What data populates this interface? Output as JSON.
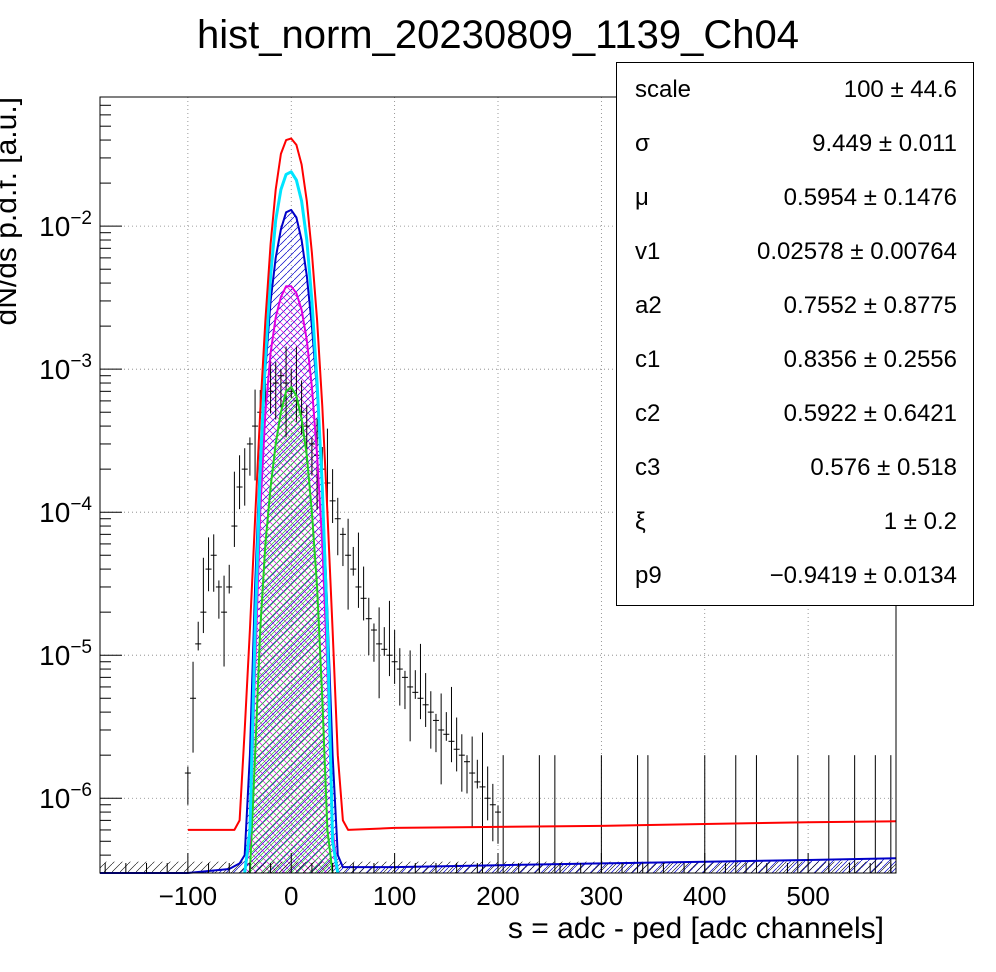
{
  "colors": {
    "data": "#000000",
    "total_fit": "#ff0000",
    "cyan_component": "#00e5ff",
    "blue_component": "#0000c8",
    "magenta_component": "#e000e0",
    "green_component": "#22d022",
    "grid": "#808080"
  },
  "stats": [
    {
      "name": "scale",
      "value": "100 ± 44.6"
    },
    {
      "name": "σ",
      "value": "9.449 ± 0.011"
    },
    {
      "name": "μ",
      "value": "0.5954 ± 0.1476"
    },
    {
      "name": "v1",
      "value": "0.02578 ± 0.00764"
    },
    {
      "name": "a2",
      "value": "0.7552 ± 0.8775"
    },
    {
      "name": "c1",
      "value": "0.8356 ± 0.2556"
    },
    {
      "name": "c2",
      "value": "0.5922 ± 0.6421"
    },
    {
      "name": "c3",
      "value": "0.576 ± 0.518"
    },
    {
      "name": "ξ",
      "value": "1 ± 0.2"
    },
    {
      "name": "p9",
      "value": "−0.9419 ± 0.0134"
    }
  ],
  "chart_data": {
    "type": "line",
    "title": "hist_norm_20230809_1139_Ch04",
    "xlabel": "s = adc - ped [adc channels]",
    "ylabel": "dN/ds p.d.f. [a.u.]",
    "xlim": [
      -185,
      585
    ],
    "ylim": [
      3e-07,
      0.08
    ],
    "log_y": true,
    "grid": true,
    "x_ticks": [
      -100,
      0,
      100,
      200,
      300,
      400,
      500
    ],
    "x_tick_labels": [
      "−100",
      "0",
      "100",
      "200",
      "300",
      "400",
      "500"
    ],
    "y_ticks": [
      1e-06,
      1e-05,
      0.0001,
      0.001,
      0.01
    ],
    "y_tick_labels": [
      {
        "base": "10",
        "exp": "−6"
      },
      {
        "base": "10",
        "exp": "−5"
      },
      {
        "base": "10",
        "exp": "−4"
      },
      {
        "base": "10",
        "exp": "−3"
      },
      {
        "base": "10",
        "exp": "−2"
      }
    ],
    "series": [
      {
        "key": "data",
        "x": [
          -100,
          -95,
          -90,
          -85,
          -80,
          -75,
          -70,
          -65,
          -60,
          -55,
          -50,
          -45,
          -40,
          -35,
          -30,
          -25,
          -20,
          -15,
          -10,
          -5,
          0,
          5,
          10,
          15,
          20,
          25,
          30,
          35,
          40,
          45,
          50,
          55,
          60,
          65,
          70,
          75,
          80,
          85,
          90,
          95,
          100,
          105,
          110,
          115,
          120,
          125,
          130,
          135,
          140,
          145,
          150,
          155,
          160,
          165,
          170,
          175,
          180,
          185,
          190,
          195,
          200
        ],
        "y": [
          1.5e-06,
          5e-06,
          1.2e-05,
          2e-05,
          4e-05,
          5e-05,
          3e-05,
          2e-05,
          3e-05,
          8e-05,
          0.00015,
          0.0002,
          0.0003,
          0.0004,
          0.0005,
          0.0006,
          0.0007,
          0.0008,
          0.0009,
          0.0008,
          0.0007,
          0.0006,
          0.0005,
          0.0004,
          0.0003,
          0.00025,
          0.0002,
          0.00016,
          0.00012,
          9e-05,
          7e-05,
          5e-05,
          4e-05,
          3e-05,
          2.5e-05,
          1.8e-05,
          1.5e-05,
          1.2e-05,
          1.1e-05,
          1e-05,
          9e-06,
          8e-06,
          7e-06,
          6e-06,
          5.5e-06,
          5e-06,
          4.5e-06,
          4e-06,
          3.5e-06,
          3e-06,
          2.8e-06,
          2.5e-06,
          2.2e-06,
          2e-06,
          1.8e-06,
          1.5e-06,
          1.3e-06,
          1.2e-06,
          1e-06,
          9e-07,
          8e-07
        ]
      },
      {
        "key": "total_fit",
        "x": [
          -100,
          -55,
          -50,
          -45,
          -40,
          -35,
          -30,
          -25,
          -20,
          -15,
          -10,
          -5,
          0,
          5,
          10,
          15,
          20,
          25,
          30,
          35,
          40,
          45,
          50,
          55,
          100,
          200,
          300,
          400,
          500,
          585
        ],
        "y": [
          6e-07,
          6e-07,
          7e-07,
          3e-06,
          1.5e-05,
          9e-05,
          0.0005,
          0.0022,
          0.0075,
          0.018,
          0.032,
          0.04,
          0.041,
          0.037,
          0.027,
          0.015,
          0.0065,
          0.0022,
          0.00055,
          0.0001,
          1.5e-05,
          2e-06,
          7e-07,
          6e-07,
          6.2e-07,
          6.3e-07,
          6.4e-07,
          6.6e-07,
          6.8e-07,
          6.9e-07
        ]
      },
      {
        "key": "cyan_component",
        "x": [
          -45,
          -40,
          -35,
          -30,
          -25,
          -20,
          -15,
          -10,
          -5,
          0,
          5,
          10,
          15,
          20,
          25,
          30,
          35,
          40,
          45
        ],
        "y": [
          3e-07,
          6e-07,
          1.5e-05,
          0.0002,
          0.0012,
          0.0045,
          0.011,
          0.018,
          0.023,
          0.024,
          0.021,
          0.015,
          0.008,
          0.003,
          0.0008,
          0.00015,
          1.5e-05,
          5e-07,
          3e-07
        ]
      },
      {
        "key": "blue_component",
        "x": [
          -185,
          -100,
          -60,
          -50,
          -45,
          -40,
          -35,
          -30,
          -25,
          -20,
          -15,
          -10,
          -5,
          0,
          5,
          10,
          15,
          20,
          25,
          30,
          35,
          40,
          45,
          50,
          100,
          200,
          300,
          400,
          500,
          585
        ],
        "y": [
          3e-07,
          3e-07,
          3.2e-07,
          3.5e-07,
          4e-07,
          2e-06,
          3e-05,
          0.00025,
          0.001,
          0.003,
          0.006,
          0.0095,
          0.0125,
          0.013,
          0.0115,
          0.008,
          0.0045,
          0.002,
          0.0007,
          0.00015,
          2e-05,
          2e-06,
          4e-07,
          3.3e-07,
          3.3e-07,
          3.4e-07,
          3.5e-07,
          3.6e-07,
          3.7e-07,
          3.8e-07
        ]
      },
      {
        "key": "magenta_component",
        "x": [
          -45,
          -40,
          -35,
          -30,
          -25,
          -20,
          -15,
          -10,
          -5,
          0,
          5,
          10,
          15,
          20,
          25,
          30,
          35,
          40,
          45
        ],
        "y": [
          3e-07,
          5e-07,
          8e-06,
          0.0001,
          0.0005,
          0.0013,
          0.0023,
          0.0032,
          0.0038,
          0.0038,
          0.0034,
          0.0026,
          0.0016,
          0.00075,
          0.00025,
          6e-05,
          8e-06,
          6e-07,
          3e-07
        ]
      },
      {
        "key": "green_component",
        "x": [
          -40,
          -35,
          -30,
          -25,
          -20,
          -15,
          -10,
          -5,
          0,
          5,
          10,
          15,
          20,
          25,
          30,
          35,
          40
        ],
        "y": [
          3e-07,
          2e-06,
          1.5e-05,
          6e-05,
          0.00015,
          0.0003,
          0.0005,
          0.0007,
          0.00075,
          0.00065,
          0.00045,
          0.00025,
          0.0001,
          3e-05,
          5e-06,
          6e-07,
          3e-07
        ]
      }
    ]
  }
}
